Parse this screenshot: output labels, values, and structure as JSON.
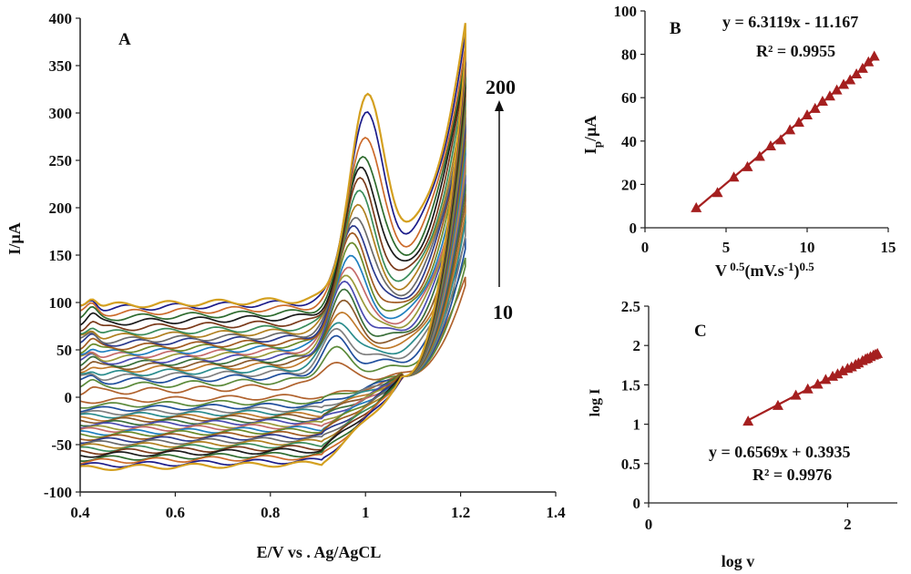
{
  "chart_data": [
    {
      "panel": "A",
      "type": "line",
      "xlabel": "E/V vs . Ag/AgCL",
      "ylabel": "I/µA",
      "xlim": [
        0.4,
        1.4
      ],
      "ylim": [
        -100,
        400
      ],
      "xticks": [
        "0.4",
        "0.6",
        "0.8",
        "1",
        "1.2",
        "1.4"
      ],
      "yticks": [
        "-100",
        "-50",
        "0",
        "50",
        "100",
        "150",
        "200",
        "250",
        "300",
        "350",
        "400"
      ],
      "annotations": {
        "scan_rate_high": "200",
        "scan_rate_low": "10"
      },
      "e_start": 0.4,
      "e_switch": 1.21,
      "peak_potential": [
        0.93,
        1.0
      ],
      "colors": [
        "#b0622d",
        "#5b8a3a",
        "#1f4e9c",
        "#7f7f7f",
        "#2a8c8c",
        "#c07a2b",
        "#8b5a2b",
        "#3a6f3a",
        "#4b4bb0",
        "#9a9a3a",
        "#c46a6a",
        "#1f7fbf",
        "#6a8a2a",
        "#a05a20",
        "#2b3a8c",
        "#6b6b6b",
        "#b08020",
        "#3a8c5a",
        "#7a3a1a",
        "#1a1a1a",
        "#2e6b2e",
        "#cc6a2a",
        "#1c1c8a",
        "#d4a020"
      ],
      "series": [
        {
          "forward_base": 5,
          "reverse_base": 0,
          "peak_height": 23,
          "peak_current": 47,
          "switch_current": 128
        },
        {
          "forward_base": 11,
          "reverse_base": -5,
          "peak_height": 30,
          "peak_current": 60,
          "switch_current": 150
        },
        {
          "forward_base": 16,
          "reverse_base": -9,
          "peak_height": 35,
          "peak_current": 70,
          "switch_current": 170
        },
        {
          "forward_base": 20,
          "reverse_base": -13,
          "peak_height": 40,
          "peak_current": 80,
          "switch_current": 185
        },
        {
          "forward_base": 24,
          "reverse_base": -16,
          "peak_height": 45,
          "peak_current": 90,
          "switch_current": 200
        },
        {
          "forward_base": 28,
          "reverse_base": -19,
          "peak_height": 51,
          "peak_current": 100,
          "switch_current": 212
        },
        {
          "forward_base": 31,
          "reverse_base": -21,
          "peak_height": 57,
          "peak_current": 110,
          "switch_current": 225
        },
        {
          "forward_base": 34,
          "reverse_base": -24,
          "peak_height": 63,
          "peak_current": 120,
          "switch_current": 237
        },
        {
          "forward_base": 37,
          "reverse_base": -26,
          "peak_height": 69,
          "peak_current": 130,
          "switch_current": 248
        },
        {
          "forward_base": 40,
          "reverse_base": -29,
          "peak_height": 75,
          "peak_current": 140,
          "switch_current": 258
        },
        {
          "forward_base": 43,
          "reverse_base": -31,
          "peak_height": 81,
          "peak_current": 150,
          "switch_current": 268
        },
        {
          "forward_base": 46,
          "reverse_base": -34,
          "peak_height": 87,
          "peak_current": 160,
          "switch_current": 278
        },
        {
          "forward_base": 49,
          "reverse_base": -36,
          "peak_height": 94,
          "peak_current": 170,
          "switch_current": 288
        },
        {
          "forward_base": 52,
          "reverse_base": -39,
          "peak_height": 101,
          "peak_current": 180,
          "switch_current": 297
        },
        {
          "forward_base": 56,
          "reverse_base": -42,
          "peak_height": 107,
          "peak_current": 190,
          "switch_current": 306
        },
        {
          "forward_base": 59,
          "reverse_base": -45,
          "peak_height": 114,
          "peak_current": 200,
          "switch_current": 315
        },
        {
          "forward_base": 63,
          "reverse_base": -48,
          "peak_height": 121,
          "peak_current": 210,
          "switch_current": 325
        },
        {
          "forward_base": 67,
          "reverse_base": -51,
          "peak_height": 128,
          "peak_current": 220,
          "switch_current": 335
        },
        {
          "forward_base": 72,
          "reverse_base": -54,
          "peak_height": 135,
          "peak_current": 232,
          "switch_current": 345
        },
        {
          "forward_base": 78,
          "reverse_base": -57,
          "peak_height": 142,
          "peak_current": 245,
          "switch_current": 355
        },
        {
          "forward_base": 83,
          "reverse_base": -61,
          "peak_height": 150,
          "peak_current": 258,
          "switch_current": 363
        },
        {
          "forward_base": 88,
          "reverse_base": -64,
          "peak_height": 163,
          "peak_current": 275,
          "switch_current": 372
        },
        {
          "forward_base": 93,
          "reverse_base": -68,
          "peak_height": 180,
          "peak_current": 295,
          "switch_current": 383
        },
        {
          "forward_base": 96,
          "reverse_base": -71,
          "peak_height": 193,
          "peak_current": 308,
          "switch_current": 392
        }
      ]
    },
    {
      "panel": "B",
      "type": "scatter",
      "xlabel": "V 0.5(mV.s-1)0.5",
      "ylabel": "Ip/µA",
      "xlim": [
        0,
        15
      ],
      "ylim": [
        0,
        100
      ],
      "xticks": [
        "0",
        "5",
        "10",
        "15"
      ],
      "yticks": [
        "0",
        "20",
        "40",
        "60",
        "80",
        "100"
      ],
      "equation": "y = 6.3119x - 11.167",
      "r_squared": "R² = 0.9955",
      "fit": {
        "slope": 6.3119,
        "intercept": -11.167,
        "x_range": [
          3.16,
          14.14
        ]
      },
      "marker_color": "#a51f1f",
      "x": [
        3.16,
        4.47,
        5.48,
        6.32,
        7.07,
        7.75,
        8.37,
        8.94,
        9.49,
        10.0,
        10.49,
        10.95,
        11.4,
        11.83,
        12.25,
        12.65,
        13.04,
        13.42,
        13.78,
        14.14
      ],
      "y": [
        9.3,
        16.3,
        23.4,
        28.2,
        33.0,
        37.8,
        40.6,
        45.2,
        48.7,
        52.1,
        55.1,
        58.4,
        60.8,
        63.6,
        66.2,
        68.3,
        71.0,
        73.6,
        76.6,
        79.2
      ]
    },
    {
      "panel": "C",
      "type": "scatter",
      "xlabel": "log v",
      "ylabel": "log I",
      "xlim": [
        0,
        2.5
      ],
      "ylim": [
        0,
        2.5
      ],
      "xticks": [
        "0",
        "2"
      ],
      "yticks": [
        "0",
        "0.5",
        "1",
        "1.5",
        "2",
        "2.5"
      ],
      "equation": "y = 0.6569x + 0.3935",
      "r_squared": "R² = 0.9976",
      "fit": {
        "slope": 0.6569,
        "intercept": 0.3935,
        "x_range": [
          1.0,
          2.3
        ]
      },
      "marker_color": "#a51f1f",
      "x": [
        1.0,
        1.3,
        1.48,
        1.6,
        1.7,
        1.78,
        1.85,
        1.9,
        1.95,
        2.0,
        2.04,
        2.08,
        2.11,
        2.15,
        2.18,
        2.2,
        2.23,
        2.26,
        2.28,
        2.3
      ],
      "y": [
        1.04,
        1.24,
        1.37,
        1.45,
        1.51,
        1.57,
        1.61,
        1.64,
        1.68,
        1.71,
        1.73,
        1.76,
        1.78,
        1.81,
        1.83,
        1.84,
        1.86,
        1.88,
        1.89,
        1.9
      ]
    }
  ]
}
